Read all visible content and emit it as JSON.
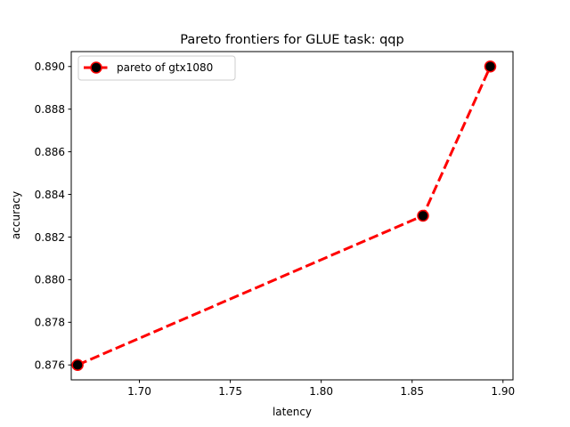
{
  "chart_data": {
    "type": "line",
    "title": "Pareto frontiers for GLUE task: qqp",
    "xlabel": "latency",
    "ylabel": "accuracy",
    "xlim": [
      1.6625,
      1.9055
    ],
    "ylim": [
      0.8753,
      0.8907
    ],
    "xticks": [
      1.7,
      1.75,
      1.8,
      1.85,
      1.9
    ],
    "xtick_labels": [
      "1.70",
      "1.75",
      "1.80",
      "1.85",
      "1.90"
    ],
    "yticks": [
      0.876,
      0.878,
      0.88,
      0.882,
      0.884,
      0.886,
      0.888,
      0.89
    ],
    "ytick_labels": [
      "0.876",
      "0.878",
      "0.880",
      "0.882",
      "0.884",
      "0.886",
      "0.888",
      "0.890"
    ],
    "grid": false,
    "legend_position": "top-left",
    "series": [
      {
        "name": "pareto of gtx1080",
        "color": "#ff0000",
        "marker_color": "#000000",
        "line_style": "dashed",
        "marker": "circle",
        "x": [
          1.666,
          1.856,
          1.893
        ],
        "y": [
          0.876,
          0.883,
          0.89
        ]
      }
    ]
  }
}
